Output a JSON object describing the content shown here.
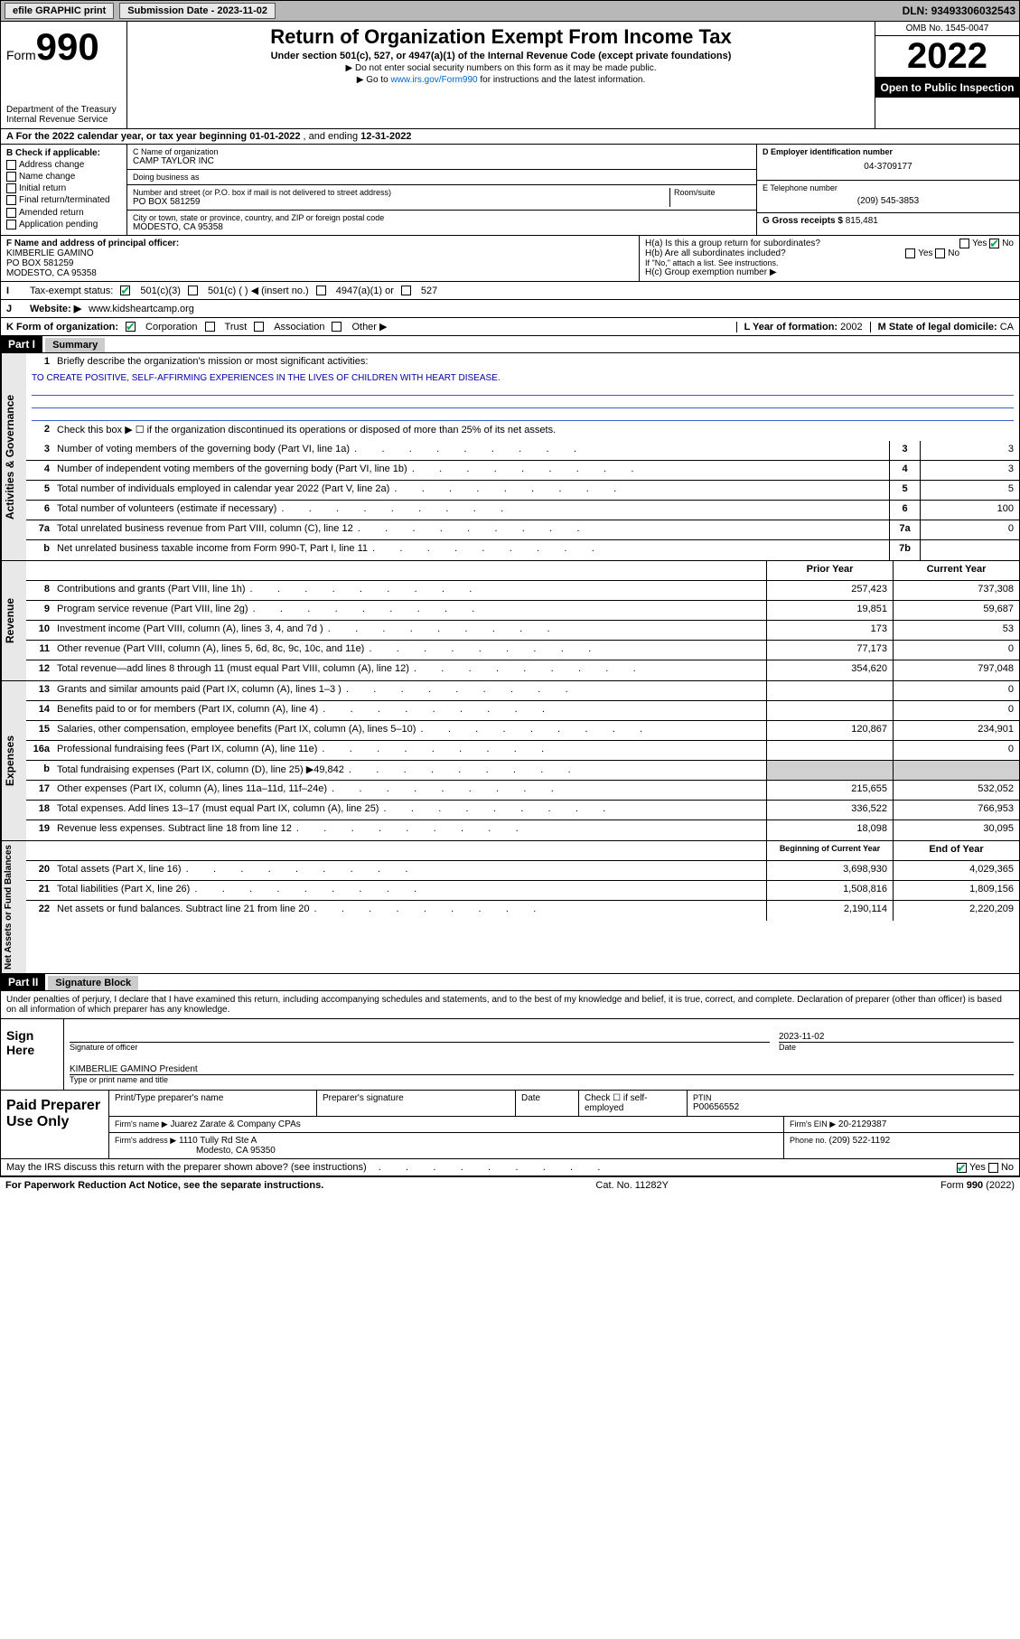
{
  "topbar": {
    "efile": "efile GRAPHIC print",
    "submission_label": "Submission Date - ",
    "submission_date": "2023-11-02",
    "dln_label": "DLN: ",
    "dln": "93493306032543"
  },
  "header": {
    "form_prefix": "Form",
    "form_no": "990",
    "dept": "Department of the Treasury Internal Revenue Service",
    "title": "Return of Organization Exempt From Income Tax",
    "sub": "Under section 501(c), 527, or 4947(a)(1) of the Internal Revenue Code (except private foundations)",
    "note1": "▶ Do not enter social security numbers on this form as it may be made public.",
    "note2_pre": "▶ Go to ",
    "note2_link": "www.irs.gov/Form990",
    "note2_post": " for instructions and the latest information.",
    "omb": "OMB No. 1545-0047",
    "year": "2022",
    "open": "Open to Public Inspection"
  },
  "lineA": {
    "text_pre": "A For the 2022 calendar year, or tax year beginning ",
    "begin": "01-01-2022",
    "mid": " , and ending ",
    "end": "12-31-2022"
  },
  "colB": {
    "label": "B Check if applicable:",
    "items": [
      "Address change",
      "Name change",
      "Initial return",
      "Final return/terminated",
      "Amended return",
      "Application pending"
    ]
  },
  "colC": {
    "name_label": "C Name of organization",
    "name": "CAMP TAYLOR INC",
    "dba_label": "Doing business as",
    "dba": "",
    "addr_label": "Number and street (or P.O. box if mail is not delivered to street address)",
    "room_label": "Room/suite",
    "addr": "PO BOX 581259",
    "city_label": "City or town, state or province, country, and ZIP or foreign postal code",
    "city": "MODESTO, CA  95358"
  },
  "colD": {
    "ein_label": "D Employer identification number",
    "ein": "04-3709177",
    "phone_label": "E Telephone number",
    "phone": "(209) 545-3853",
    "gross_label": "G Gross receipts $ ",
    "gross": "815,481"
  },
  "rowF": {
    "label": "F Name and address of principal officer:",
    "name": "KIMBERLIE GAMINO",
    "addr1": "PO BOX 581259",
    "addr2": "MODESTO, CA  95358"
  },
  "rowH": {
    "ha_label": "H(a)  Is this a group return for subordinates?",
    "ha_yes": "Yes",
    "ha_no": "No",
    "hb_label": "H(b)  Are all subordinates included?",
    "hb_note": "If \"No,\" attach a list. See instructions.",
    "hc_label": "H(c)  Group exemption number ▶"
  },
  "rowI": {
    "label": "Tax-exempt status:",
    "c3": "501(c)(3)",
    "c": "501(c) (   ) ◀ (insert no.)",
    "a1": "4947(a)(1) or",
    "s527": "527"
  },
  "rowJ": {
    "label": "Website: ▶",
    "url": "www.kidsheartcamp.org"
  },
  "rowK": {
    "label": "K Form of organization:",
    "corp": "Corporation",
    "trust": "Trust",
    "assoc": "Association",
    "other": "Other ▶",
    "l_label": "L Year of formation: ",
    "l_val": "2002",
    "m_label": "M State of legal domicile: ",
    "m_val": "CA"
  },
  "part1": {
    "hdr": "Part I",
    "title": "Summary",
    "l1_label": "Briefly describe the organization's mission or most significant activities:",
    "l1_text": "TO CREATE POSITIVE, SELF-AFFIRMING EXPERIENCES IN THE LIVES OF CHILDREN WITH HEART DISEASE.",
    "l2": "Check this box ▶ ☐  if the organization discontinued its operations or disposed of more than 25% of its net assets.",
    "vtab1": "Activities & Governance",
    "vtab2": "Revenue",
    "vtab3": "Expenses",
    "vtab4": "Net Assets or Fund Balances",
    "rows_gov": [
      {
        "n": "3",
        "t": "Number of voting members of the governing body (Part VI, line 1a)",
        "box": "3",
        "v": "3"
      },
      {
        "n": "4",
        "t": "Number of independent voting members of the governing body (Part VI, line 1b)",
        "box": "4",
        "v": "3"
      },
      {
        "n": "5",
        "t": "Total number of individuals employed in calendar year 2022 (Part V, line 2a)",
        "box": "5",
        "v": "5"
      },
      {
        "n": "6",
        "t": "Total number of volunteers (estimate if necessary)",
        "box": "6",
        "v": "100"
      },
      {
        "n": "7a",
        "t": "Total unrelated business revenue from Part VIII, column (C), line 12",
        "box": "7a",
        "v": "0"
      },
      {
        "n": "b",
        "t": "Net unrelated business taxable income from Form 990-T, Part I, line 11",
        "box": "7b",
        "v": ""
      }
    ],
    "py_label": "Prior Year",
    "cy_label": "Current Year",
    "rows_rev": [
      {
        "n": "8",
        "t": "Contributions and grants (Part VIII, line 1h)",
        "py": "257,423",
        "cy": "737,308"
      },
      {
        "n": "9",
        "t": "Program service revenue (Part VIII, line 2g)",
        "py": "19,851",
        "cy": "59,687"
      },
      {
        "n": "10",
        "t": "Investment income (Part VIII, column (A), lines 3, 4, and 7d )",
        "py": "173",
        "cy": "53"
      },
      {
        "n": "11",
        "t": "Other revenue (Part VIII, column (A), lines 5, 6d, 8c, 9c, 10c, and 11e)",
        "py": "77,173",
        "cy": "0"
      },
      {
        "n": "12",
        "t": "Total revenue—add lines 8 through 11 (must equal Part VIII, column (A), line 12)",
        "py": "354,620",
        "cy": "797,048"
      }
    ],
    "rows_exp": [
      {
        "n": "13",
        "t": "Grants and similar amounts paid (Part IX, column (A), lines 1–3 )",
        "py": "",
        "cy": "0"
      },
      {
        "n": "14",
        "t": "Benefits paid to or for members (Part IX, column (A), line 4)",
        "py": "",
        "cy": "0"
      },
      {
        "n": "15",
        "t": "Salaries, other compensation, employee benefits (Part IX, column (A), lines 5–10)",
        "py": "120,867",
        "cy": "234,901"
      },
      {
        "n": "16a",
        "t": "Professional fundraising fees (Part IX, column (A), line 11e)",
        "py": "",
        "cy": "0"
      },
      {
        "n": "b",
        "t": "Total fundraising expenses (Part IX, column (D), line 25) ▶49,842",
        "py": "__shade__",
        "cy": "__shade__"
      },
      {
        "n": "17",
        "t": "Other expenses (Part IX, column (A), lines 11a–11d, 11f–24e)",
        "py": "215,655",
        "cy": "532,052"
      },
      {
        "n": "18",
        "t": "Total expenses. Add lines 13–17 (must equal Part IX, column (A), line 25)",
        "py": "336,522",
        "cy": "766,953"
      },
      {
        "n": "19",
        "t": "Revenue less expenses. Subtract line 18 from line 12",
        "py": "18,098",
        "cy": "30,095"
      }
    ],
    "bcy_label": "Beginning of Current Year",
    "eoy_label": "End of Year",
    "rows_na": [
      {
        "n": "20",
        "t": "Total assets (Part X, line 16)",
        "py": "3,698,930",
        "cy": "4,029,365"
      },
      {
        "n": "21",
        "t": "Total liabilities (Part X, line 26)",
        "py": "1,508,816",
        "cy": "1,809,156"
      },
      {
        "n": "22",
        "t": "Net assets or fund balances. Subtract line 21 from line 20",
        "py": "2,190,114",
        "cy": "2,220,209"
      }
    ]
  },
  "part2": {
    "hdr": "Part II",
    "title": "Signature Block",
    "decl": "Under penalties of perjury, I declare that I have examined this return, including accompanying schedules and statements, and to the best of my knowledge and belief, it is true, correct, and complete. Declaration of preparer (other than officer) is based on all information of which preparer has any knowledge.",
    "sign_here": "Sign Here",
    "sig_officer": "Signature of officer",
    "sig_date": "2023-11-02",
    "date_lbl": "Date",
    "officer_name": "KIMBERLIE GAMINO  President",
    "type_lbl": "Type or print name and title",
    "paid_prep": "Paid Preparer Use Only",
    "pt_name": "Print/Type preparer's name",
    "pt_sig": "Preparer's signature",
    "pt_date": "Date",
    "pt_check": "Check ☐ if self-employed",
    "ptin_lbl": "PTIN",
    "ptin": "P00656552",
    "firm_name_lbl": "Firm's name    ▶",
    "firm_name": "Juarez Zarate & Company CPAs",
    "firm_ein_lbl": "Firm's EIN ▶",
    "firm_ein": "20-2129387",
    "firm_addr_lbl": "Firm's address ▶",
    "firm_addr1": "1110 Tully Rd Ste A",
    "firm_addr2": "Modesto, CA  95350",
    "firm_phone_lbl": "Phone no. ",
    "firm_phone": "(209) 522-1192",
    "may_irs": "May the IRS discuss this return with the preparer shown above? (see instructions)",
    "yes": "Yes",
    "no": "No"
  },
  "footer": {
    "pra": "For Paperwork Reduction Act Notice, see the separate instructions.",
    "cat": "Cat. No. 11282Y",
    "form": "Form 990 (2022)"
  }
}
